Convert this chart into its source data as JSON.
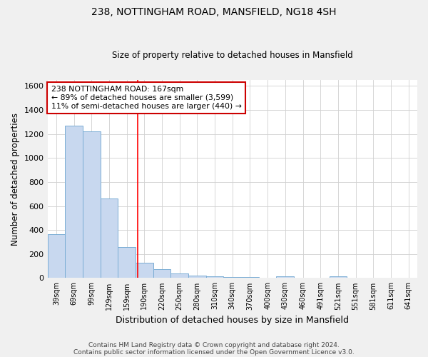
{
  "title1": "238, NOTTINGHAM ROAD, MANSFIELD, NG18 4SH",
  "title2": "Size of property relative to detached houses in Mansfield",
  "xlabel": "Distribution of detached houses by size in Mansfield",
  "ylabel": "Number of detached properties",
  "categories": [
    "39sqm",
    "69sqm",
    "99sqm",
    "129sqm",
    "159sqm",
    "190sqm",
    "220sqm",
    "250sqm",
    "280sqm",
    "310sqm",
    "340sqm",
    "370sqm",
    "400sqm",
    "430sqm",
    "460sqm",
    "491sqm",
    "521sqm",
    "551sqm",
    "581sqm",
    "611sqm",
    "641sqm"
  ],
  "values": [
    365,
    1270,
    1220,
    665,
    260,
    125,
    75,
    40,
    22,
    15,
    10,
    8,
    5,
    15,
    3,
    3,
    15,
    3,
    3,
    3,
    3
  ],
  "bar_color": "#c8d8ef",
  "bar_edge_color": "#7aadd4",
  "fig_bg_color": "#f0f0f0",
  "ax_bg_color": "#ffffff",
  "grid_color": "#d0d0d0",
  "red_line_x": 4.62,
  "annotation_text": "238 NOTTINGHAM ROAD: 167sqm\n← 89% of detached houses are smaller (3,599)\n11% of semi-detached houses are larger (440) →",
  "annotation_box_color": "#ffffff",
  "annotation_box_edge_color": "#cc0000",
  "footer1": "Contains HM Land Registry data © Crown copyright and database right 2024.",
  "footer2": "Contains public sector information licensed under the Open Government Licence v3.0.",
  "ylim": [
    0,
    1650
  ],
  "yticks": [
    0,
    200,
    400,
    600,
    800,
    1000,
    1200,
    1400,
    1600
  ]
}
